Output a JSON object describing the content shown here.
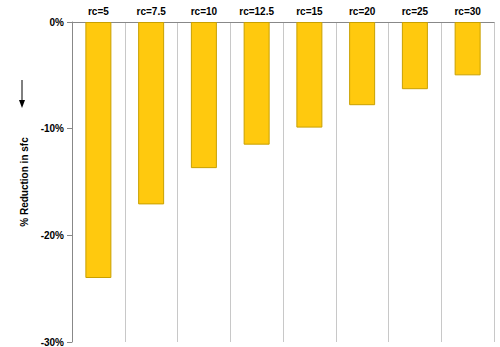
{
  "chart_data": {
    "type": "bar",
    "y_label": "% Reduction in sfc",
    "categories": [
      "rc=5",
      "rc=7.5",
      "rc=10",
      "rc=12.5",
      "rc=15",
      "rc=20",
      "rc=25",
      "rc=30"
    ],
    "values": [
      -24.0,
      -17.1,
      -13.7,
      -11.5,
      -9.9,
      -7.8,
      -6.3,
      -5.0
    ],
    "color": "#ffc90e",
    "ylim": [
      -30,
      0
    ],
    "yticks": [
      {
        "value": -30,
        "label": "-30%"
      },
      {
        "value": -20,
        "label": "-20%"
      },
      {
        "value": -10,
        "label": "-10%"
      },
      {
        "value": 0,
        "label": "0%"
      }
    ],
    "grid": true
  }
}
